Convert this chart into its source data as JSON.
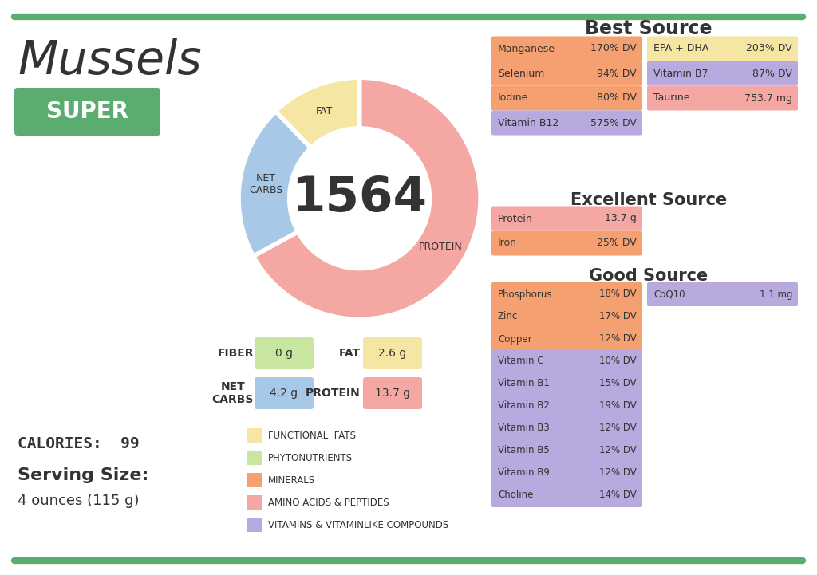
{
  "title": "Mussels",
  "calories": "CALORIES:  99",
  "serving_size": "Serving Size:",
  "serving_desc": "4 ounces (115 g)",
  "super_label": "SUPER",
  "donut_center": "1564",
  "donut_values": [
    55,
    17,
    10
  ],
  "donut_labels": [
    "PROTEIN",
    "NET\nCARBS",
    "FAT"
  ],
  "donut_colors": [
    "#F4A7A3",
    "#A8C8E8",
    "#F5E6A3"
  ],
  "macro_items": [
    {
      "label": "FIBER",
      "value": "0 g",
      "color": "#C8E6A0"
    },
    {
      "label": "FAT",
      "value": "2.6 g",
      "color": "#F5E6A3"
    },
    {
      "label": "NET\nCARBS",
      "value": "4.2 g",
      "color": "#A8C8E8"
    },
    {
      "label": "PROTEIN",
      "value": "13.7 g",
      "color": "#F4A7A3"
    }
  ],
  "legend_items": [
    {
      "label": "FUNCTIONAL  FATS",
      "color": "#F5E6A3"
    },
    {
      "label": "PHYTONUTRIENTS",
      "color": "#C8E6A0"
    },
    {
      "label": "MINERALS",
      "color": "#F4A070"
    },
    {
      "label": "AMINO ACIDS & PEPTIDES",
      "color": "#F4A7A3"
    },
    {
      "label": "VITAMINS & VITAMINLIKE COMPOUNDS",
      "color": "#B8AADE"
    }
  ],
  "best_source_title": "Best Source",
  "best_source_items": [
    {
      "name": "Manganese",
      "value": "170% DV",
      "color": "#F4A070"
    },
    {
      "name": "EPA + DHA",
      "value": "203% DV",
      "color": "#F5E6A3"
    },
    {
      "name": "Selenium",
      "value": "94% DV",
      "color": "#F4A070"
    },
    {
      "name": "Vitamin B7",
      "value": "87% DV",
      "color": "#B8AADE"
    },
    {
      "name": "Iodine",
      "value": "80% DV",
      "color": "#F4A070"
    },
    {
      "name": "Taurine",
      "value": "753.7 mg",
      "color": "#F4A7A3"
    },
    {
      "name": "Vitamin B12",
      "value": "575% DV",
      "color": "#B8AADE"
    }
  ],
  "excellent_source_title": "Excellent Source",
  "excellent_source_items": [
    {
      "name": "Protein",
      "value": "13.7 g",
      "color": "#F4A7A3"
    },
    {
      "name": "Iron",
      "value": "25% DV",
      "color": "#F4A070"
    }
  ],
  "good_source_title": "Good Source",
  "good_source_items": [
    {
      "name": "Phosphorus",
      "value": "18% DV",
      "color": "#F4A070"
    },
    {
      "name": "CoQ10",
      "value": "1.1 mg",
      "color": "#B8AADE"
    },
    {
      "name": "Zinc",
      "value": "17% DV",
      "color": "#F4A070"
    },
    {
      "name": "Copper",
      "value": "12% DV",
      "color": "#F4A070"
    },
    {
      "name": "Vitamin C",
      "value": "10% DV",
      "color": "#B8AADE"
    },
    {
      "name": "Vitamin B1",
      "value": "15% DV",
      "color": "#B8AADE"
    },
    {
      "name": "Vitamin B2",
      "value": "19% DV",
      "color": "#B8AADE"
    },
    {
      "name": "Vitamin B3",
      "value": "12% DV",
      "color": "#B8AADE"
    },
    {
      "name": "Vitamin B5",
      "value": "12% DV",
      "color": "#B8AADE"
    },
    {
      "name": "Vitamin B9",
      "value": "12% DV",
      "color": "#B8AADE"
    },
    {
      "name": "Choline",
      "value": "14% DV",
      "color": "#B8AADE"
    }
  ],
  "bg_color": "#FFFFFF",
  "border_color": "#5BAD6F",
  "text_dark": "#333333",
  "title_font_size": 38,
  "super_bg": "#5BAD6F",
  "super_text_color": "#FFFFFF"
}
